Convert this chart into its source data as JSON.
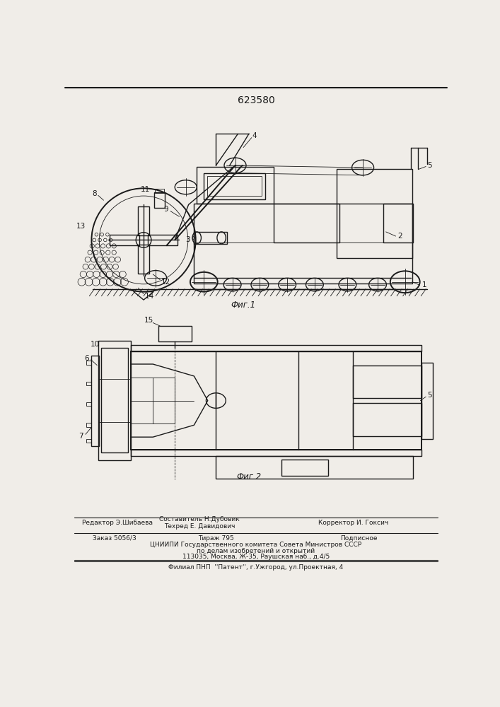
{
  "patent_number": "623580",
  "fig1_caption": "Фиг.1",
  "fig2_caption": "Фиг.2",
  "bg_color": "#f0ede8",
  "line_color": "#1a1a1a",
  "footer_editor": "Редактор Э.Шибаева",
  "footer_composer": "Составитель Н.Дубовик",
  "footer_techred": "Техред Е. Давидович",
  "footer_corrector": "Корректор И. Гоксич",
  "footer_order": "Заказ 5056/3",
  "footer_tirazh": "Тираж 795",
  "footer_podpisnoe": "Подписное",
  "footer_cniip1": "ЦНИИПИ Государственного комитета Совета Министров СССР",
  "footer_cniip2": "по делам изобретений и открытий",
  "footer_cniip3": "113035, Москва, Ж-35, Раушская наб., д.4/5",
  "footer_filial": "Филиал ПНП  ''Патент'', г.Ужгород, ул.Проектная, 4"
}
